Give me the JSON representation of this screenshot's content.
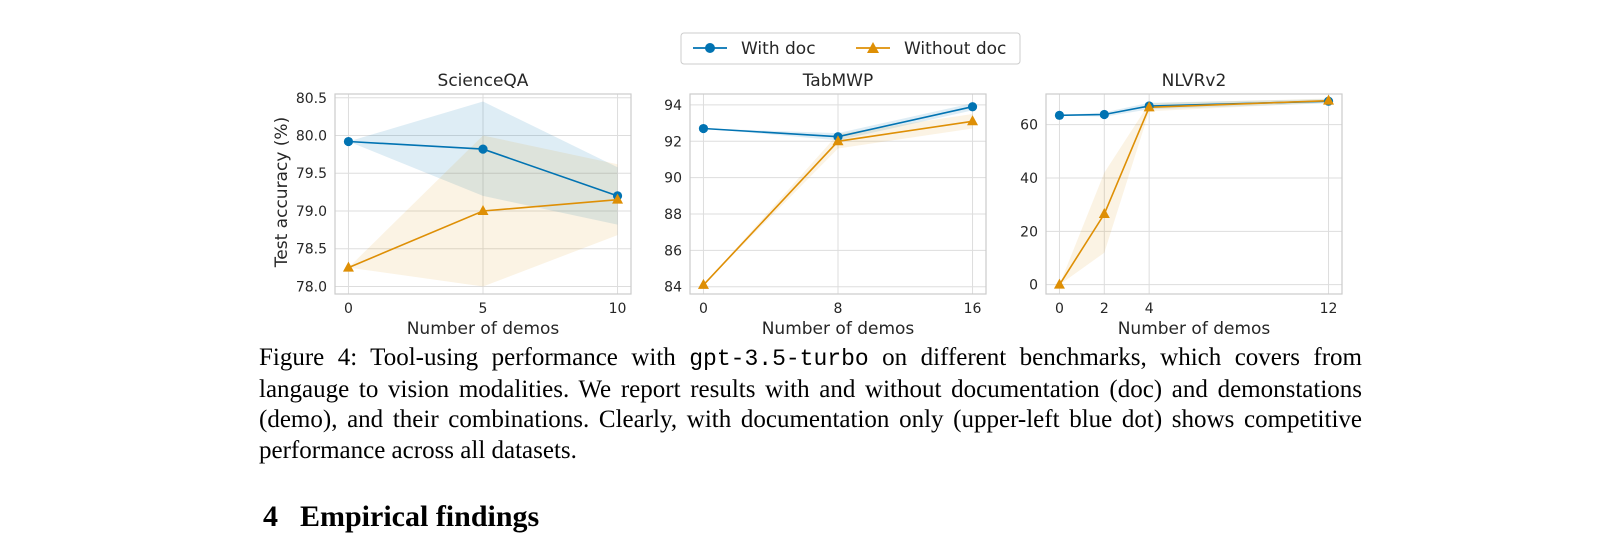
{
  "legend": {
    "with_doc": "With doc",
    "without_doc": "Without doc"
  },
  "ylabel": "Test accuracy (%)",
  "colors": {
    "with_doc": "#0173b2",
    "without_doc": "#de8f05",
    "grid": "#dddddd",
    "frame": "#cccccc"
  },
  "chart_data": [
    {
      "type": "line",
      "title": "ScienceQA",
      "xlabel": "Number of demos",
      "ylabel": "Test accuracy (%)",
      "xlim": [
        -0.5,
        10.5
      ],
      "ylim": [
        77.9,
        80.55
      ],
      "x_ticks": [
        0,
        5,
        10
      ],
      "y_ticks": [
        78.0,
        78.5,
        79.0,
        79.5,
        80.0,
        80.5
      ],
      "y_tick_labels": [
        "78.0",
        "78.5",
        "79.0",
        "79.5",
        "80.0",
        "80.5"
      ],
      "grid": true,
      "series": [
        {
          "name": "With doc",
          "x": [
            0,
            5,
            10
          ],
          "y": [
            79.92,
            79.82,
            79.2
          ],
          "band_low": [
            79.92,
            79.2,
            78.82
          ],
          "band_high": [
            79.92,
            80.45,
            79.58
          ]
        },
        {
          "name": "Without doc",
          "x": [
            0,
            5,
            10
          ],
          "y": [
            78.25,
            79.0,
            79.15
          ],
          "band_low": [
            78.25,
            78.0,
            78.68
          ],
          "band_high": [
            78.25,
            80.0,
            79.62
          ]
        }
      ]
    },
    {
      "type": "line",
      "title": "TabMWP",
      "xlabel": "Number of demos",
      "xlim": [
        -0.8,
        16.8
      ],
      "ylim": [
        83.6,
        94.6
      ],
      "x_ticks": [
        0,
        8,
        16
      ],
      "y_ticks": [
        84,
        86,
        88,
        90,
        92,
        94
      ],
      "y_tick_labels": [
        "84",
        "86",
        "88",
        "90",
        "92",
        "94"
      ],
      "grid": true,
      "series": [
        {
          "name": "With doc",
          "x": [
            0,
            8,
            16
          ],
          "y": [
            92.7,
            92.25,
            93.9
          ],
          "band_low": [
            92.7,
            92.05,
            93.7
          ],
          "band_high": [
            92.7,
            92.45,
            94.1
          ]
        },
        {
          "name": "Without doc",
          "x": [
            0,
            8,
            16
          ],
          "y": [
            84.1,
            92.0,
            93.1
          ],
          "band_low": [
            84.1,
            91.6,
            92.7
          ],
          "band_high": [
            84.1,
            92.4,
            93.5
          ]
        }
      ]
    },
    {
      "type": "line",
      "title": "NLVRv2",
      "xlabel": "Number of demos",
      "xlim": [
        -0.6,
        12.6
      ],
      "ylim": [
        -3.5,
        71.5
      ],
      "x_ticks": [
        0,
        2,
        4,
        12
      ],
      "y_ticks": [
        0,
        20,
        40,
        60
      ],
      "y_tick_labels": [
        "0",
        "20",
        "40",
        "60"
      ],
      "grid": true,
      "series": [
        {
          "name": "With doc",
          "x": [
            0,
            2,
            4,
            12
          ],
          "y": [
            63.5,
            63.8,
            67.0,
            68.8
          ],
          "band_low": [
            63.5,
            63.0,
            65.8,
            68.0
          ],
          "band_high": [
            63.5,
            64.6,
            68.2,
            69.6
          ]
        },
        {
          "name": "Without doc",
          "x": [
            0,
            2,
            4,
            12
          ],
          "y": [
            0,
            26.5,
            66.5,
            69.0
          ],
          "band_low": [
            0,
            12.0,
            65.0,
            68.2
          ],
          "band_high": [
            0,
            42.0,
            68.0,
            69.8
          ]
        }
      ]
    }
  ],
  "caption": {
    "prefix": "Figure 4: Tool-using performance with ",
    "code": "gpt-3.5-turbo",
    "rest": " on different benchmarks, which covers from langauge to vision modalities. We report results with and without documentation (doc) and demonstations (demo), and their combinations. Clearly, with documentation only (upper-left blue dot) shows competitive performance across all datasets."
  },
  "section": {
    "number": "4",
    "title": "Empirical findings"
  }
}
